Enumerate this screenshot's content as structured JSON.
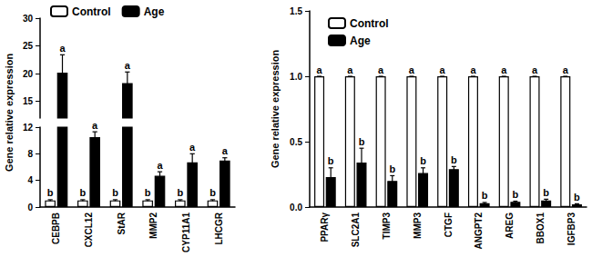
{
  "chart_data": [
    {
      "type": "bar",
      "y_label": "Gene relative expression",
      "categories": [
        "CEBPB",
        "CXCL12",
        "StAR",
        "MMP2",
        "CYP11A1",
        "LHCGR"
      ],
      "series": [
        {
          "name": "Control",
          "color": "#ffffff",
          "values": [
            1,
            1,
            1,
            1,
            1,
            1
          ],
          "errors": [
            0.1,
            0.1,
            0.1,
            0.1,
            0.1,
            0.1
          ],
          "letters": [
            "b",
            "b",
            "b",
            "b",
            "b",
            "b"
          ]
        },
        {
          "name": "Age",
          "color": "#000000",
          "values": [
            20.2,
            10.5,
            18.3,
            4.7,
            6.7,
            7.0
          ],
          "errors": [
            3.2,
            0.8,
            2.0,
            0.6,
            1.3,
            0.4
          ],
          "letters": [
            "a",
            "a",
            "a",
            "a",
            "a",
            "a"
          ]
        }
      ],
      "ylim": [
        0,
        30
      ],
      "yticks": [
        0,
        4,
        8,
        12,
        15,
        20,
        25,
        30
      ],
      "y_break": 12,
      "legend": "upper left",
      "grid": false
    },
    {
      "type": "bar",
      "y_label": "Gene relative expression",
      "categories": [
        "PPARγ",
        "SLC2A1",
        "TIMP3",
        "MMP3",
        "CTGF",
        "ANGPT2",
        "AREG",
        "BBOX1",
        "IGFBP3"
      ],
      "series": [
        {
          "name": "Control",
          "color": "#ffffff",
          "values": [
            1,
            1,
            1,
            1,
            1,
            1,
            1,
            1,
            1
          ],
          "errors": [
            0,
            0,
            0,
            0,
            0,
            0,
            0,
            0,
            0
          ],
          "letters": [
            "a",
            "a",
            "a",
            "a",
            "a",
            "a",
            "a",
            "a",
            "a"
          ]
        },
        {
          "name": "Age",
          "color": "#000000",
          "values": [
            0.23,
            0.34,
            0.2,
            0.26,
            0.29,
            0.03,
            0.04,
            0.05,
            0.02
          ],
          "errors": [
            0.07,
            0.11,
            0.04,
            0.04,
            0.02,
            0.005,
            0.005,
            0.01,
            0.005
          ],
          "letters": [
            "b",
            "b",
            "b",
            "b",
            "b",
            "b",
            "b",
            "b",
            "b"
          ]
        }
      ],
      "ylim": [
        0,
        1.5
      ],
      "yticks": [
        {
          "value": 0,
          "label": "0.0"
        },
        {
          "value": 0.5,
          "label": "0.5"
        },
        {
          "value": 1.0,
          "label": "1.0"
        },
        {
          "value": 1.5,
          "label": "1.5"
        }
      ],
      "legend": "upper left",
      "grid": false
    }
  ]
}
